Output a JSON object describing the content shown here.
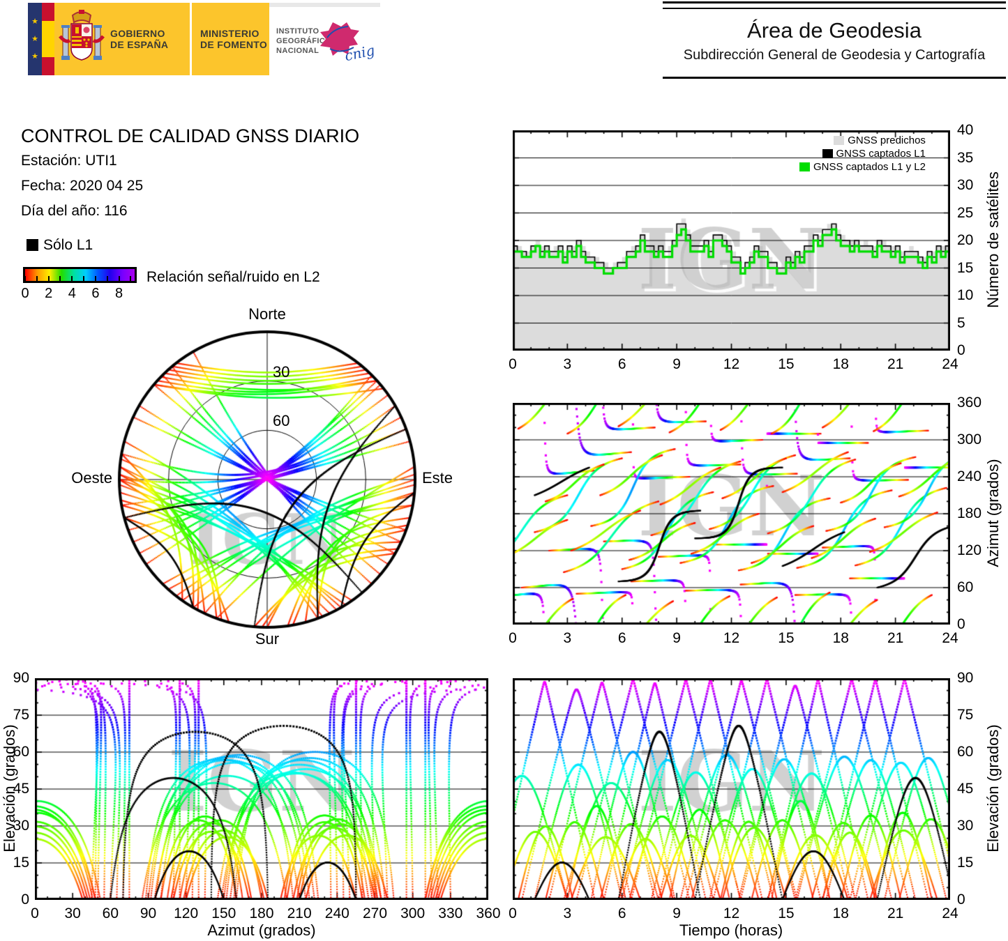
{
  "header": {
    "gobierno": {
      "line1": "GOBIERNO",
      "line2": "DE ESPAÑA"
    },
    "ministerio": {
      "line1": "MINISTERIO",
      "line2": "DE FOMENTO"
    },
    "instituto": {
      "line1": "INSTITUTO",
      "line2": "GEOGRÁFICO",
      "line3": "NACIONAL"
    },
    "cnig_label": "cnig",
    "area": {
      "title": "Área de Geodesia",
      "subtitle": "Subdirección General de Geodesia y Cartografía"
    }
  },
  "info": {
    "title": "CONTROL DE CALIDAD GNSS DIARIO",
    "station": "Estación: UTI1",
    "date": "Fecha: 2020 04 25",
    "doy": "Día del año: 116"
  },
  "legend": {
    "solo_l1": "Sólo L1",
    "colorbar_label": "Relación señal/ruido en L2",
    "colorbar_ticks": [
      0,
      2,
      4,
      6,
      8
    ],
    "colorbar_minor_ticks": [
      0,
      1,
      2,
      3,
      4,
      5,
      6,
      7,
      8,
      9
    ],
    "colorbar_range": [
      0,
      9.33
    ],
    "colorbar_stops": [
      "#ff0000",
      "#ff9900",
      "#ffee00",
      "#22dd00",
      "#00e0a0",
      "#00ccff",
      "#0055ff",
      "#2200ee",
      "#7700ff",
      "#aa00ee"
    ]
  },
  "skyplot": {
    "north": "Norte",
    "south": "Sur",
    "west": "Oeste",
    "east": "Este",
    "rings": [
      30,
      60
    ]
  },
  "charts": {
    "count": {
      "ylabel": "Número de satélites",
      "xticks": [
        0,
        3,
        6,
        9,
        12,
        15,
        18,
        21,
        24
      ],
      "yticks": [
        0,
        5,
        10,
        15,
        20,
        25,
        30,
        35,
        40
      ],
      "legend": [
        {
          "label": "GNSS predichos",
          "color": "#dcdcdc"
        },
        {
          "label": "GNSS captados L1",
          "color": "#000000"
        },
        {
          "label": "GNSS captados L1 y L2",
          "color": "#00dd00"
        }
      ]
    },
    "azimut": {
      "ylabel": "Azimut (grados)",
      "xticks": [
        0,
        3,
        6,
        9,
        12,
        15,
        18,
        21,
        24
      ],
      "yticks": [
        0,
        60,
        120,
        180,
        240,
        300,
        360
      ]
    },
    "elev_az": {
      "xlabel": "Azimut (grados)",
      "ylabel": "Elevación (grados)",
      "xticks": [
        0,
        30,
        60,
        90,
        120,
        150,
        180,
        210,
        240,
        270,
        300,
        330,
        360
      ],
      "yticks": [
        0,
        15,
        30,
        45,
        60,
        75,
        90
      ]
    },
    "elev_time": {
      "xlabel": "Tiempo (horas)",
      "ylabel": "Elevación (grados)",
      "xticks": [
        0,
        3,
        6,
        9,
        12,
        15,
        18,
        21,
        24
      ],
      "yticks": [
        0,
        15,
        30,
        45,
        60,
        75,
        90
      ]
    }
  },
  "chart_data": {
    "watermark": "IGN",
    "satellite_count": {
      "type": "line",
      "style": "steps",
      "x_start_hours": 0,
      "x_step_hours": 0.25,
      "x_range": [
        0,
        24
      ],
      "y_range": [
        0,
        40
      ],
      "grid_step": 5,
      "series": [
        {
          "name": "GNSS predichos",
          "style": "filled-steps",
          "color": "#dcdcdc",
          "values": [
            19,
            19,
            18,
            18,
            19,
            20,
            19,
            19,
            18,
            19,
            19,
            18,
            19,
            19,
            20,
            19,
            18,
            17,
            17,
            16,
            16,
            15,
            16,
            16,
            17,
            18,
            19,
            19,
            21,
            20,
            19,
            19,
            19,
            18,
            19,
            20,
            23,
            24,
            22,
            20,
            19,
            20,
            20,
            19,
            21,
            22,
            21,
            20,
            18,
            17,
            16,
            16,
            18,
            19,
            19,
            18,
            17,
            16,
            15,
            16,
            17,
            17,
            18,
            18,
            19,
            20,
            21,
            21,
            22,
            23,
            23,
            22,
            21,
            20,
            20,
            20,
            19,
            20,
            19,
            19,
            20,
            20,
            19,
            19,
            19,
            18,
            18,
            19,
            18,
            17,
            17,
            18,
            18,
            19,
            19,
            19
          ]
        },
        {
          "name": "GNSS captados L1",
          "style": "steps",
          "color": "#000000",
          "values": [
            19,
            18,
            18,
            17,
            19,
            19,
            18,
            19,
            18,
            18,
            19,
            17,
            19,
            18,
            20,
            18,
            17,
            17,
            16,
            16,
            15,
            15,
            15,
            16,
            16,
            18,
            18,
            19,
            21,
            19,
            19,
            18,
            19,
            18,
            18,
            20,
            23,
            23,
            21,
            19,
            19,
            19,
            20,
            18,
            21,
            21,
            20,
            19,
            17,
            17,
            15,
            16,
            17,
            19,
            18,
            18,
            16,
            16,
            15,
            15,
            17,
            16,
            18,
            17,
            19,
            19,
            21,
            20,
            22,
            22,
            23,
            21,
            20,
            20,
            19,
            20,
            19,
            19,
            19,
            18,
            20,
            19,
            19,
            18,
            19,
            17,
            18,
            18,
            18,
            17,
            16,
            18,
            17,
            19,
            18,
            19
          ]
        },
        {
          "name": "GNSS captados L1 y L2",
          "style": "steps",
          "color": "#00dd00",
          "values": [
            18,
            18,
            17,
            17,
            18,
            19,
            17,
            18,
            17,
            17,
            18,
            16,
            18,
            17,
            19,
            17,
            16,
            16,
            15,
            15,
            14,
            14,
            15,
            15,
            15,
            17,
            17,
            18,
            20,
            18,
            18,
            17,
            18,
            17,
            17,
            19,
            21,
            22,
            20,
            18,
            18,
            18,
            19,
            17,
            20,
            20,
            19,
            18,
            16,
            16,
            14,
            15,
            16,
            18,
            17,
            17,
            15,
            15,
            14,
            14,
            16,
            15,
            17,
            16,
            18,
            18,
            20,
            19,
            21,
            21,
            22,
            20,
            19,
            19,
            18,
            19,
            18,
            18,
            18,
            17,
            19,
            18,
            18,
            17,
            18,
            16,
            17,
            17,
            17,
            16,
            15,
            17,
            16,
            18,
            17,
            18
          ]
        }
      ]
    },
    "satellite_tracks": {
      "type": "scatter",
      "note": "Satellite passes shown as dotted tracks in skyplot, azimuth-vs-time, elevation-vs-azimuth and elevation-vs-time panels; approximated here by pass parameters [rise_hour, duration_h, rise_azimuth_deg, set_azimuth_deg, bulge_toward_zenith_0to1, l1_only_flag].",
      "color_by": "L2 signal/noise (correlates with elevation): red=low, yellow/green=mid, cyan/blue=high, magenta=highest; black = L1 only",
      "time_range_hours": [
        0,
        24
      ],
      "azimuth_range_deg": [
        0,
        360
      ],
      "elevation_range_deg": [
        0,
        90
      ],
      "passes": [
        [
          -1.0,
          5.5,
          45,
          250,
          0.92,
          0
        ],
        [
          0.5,
          6.0,
          60,
          280,
          0.85,
          0
        ],
        [
          2.0,
          5.8,
          120,
          320,
          0.88,
          0
        ],
        [
          3.5,
          6.2,
          50,
          240,
          0.95,
          0
        ],
        [
          5.0,
          5.6,
          135,
          330,
          0.82,
          0
        ],
        [
          6.5,
          6.0,
          70,
          260,
          0.9,
          0
        ],
        [
          8.0,
          5.7,
          110,
          300,
          0.93,
          0
        ],
        [
          9.5,
          6.1,
          55,
          245,
          0.86,
          0
        ],
        [
          11.0,
          5.9,
          130,
          310,
          0.96,
          0
        ],
        [
          12.5,
          6.0,
          65,
          270,
          0.84,
          0
        ],
        [
          14.0,
          5.5,
          115,
          295,
          0.91,
          0
        ],
        [
          15.5,
          6.2,
          48,
          235,
          0.88,
          0
        ],
        [
          17.0,
          5.8,
          125,
          315,
          0.94,
          0
        ],
        [
          18.5,
          6.0,
          75,
          255,
          0.83,
          0
        ],
        [
          -2.0,
          5.0,
          95,
          210,
          0.18,
          0
        ],
        [
          1.2,
          4.8,
          150,
          270,
          0.22,
          0
        ],
        [
          2.8,
          5.2,
          85,
          200,
          0.12,
          0
        ],
        [
          4.3,
          4.6,
          160,
          285,
          0.28,
          0
        ],
        [
          6.0,
          5.0,
          90,
          215,
          0.2,
          0
        ],
        [
          7.6,
          4.9,
          145,
          265,
          0.15,
          0
        ],
        [
          9.2,
          5.1,
          100,
          225,
          0.25,
          0
        ],
        [
          10.8,
          4.7,
          155,
          275,
          0.18,
          0
        ],
        [
          12.4,
          5.0,
          88,
          205,
          0.3,
          0
        ],
        [
          14.0,
          4.8,
          148,
          268,
          0.14,
          0
        ],
        [
          15.6,
          5.2,
          92,
          218,
          0.22,
          0
        ],
        [
          17.2,
          4.9,
          152,
          272,
          0.26,
          0
        ],
        [
          18.8,
          5.0,
          96,
          222,
          0.16,
          0
        ],
        [
          20.4,
          4.8,
          158,
          278,
          0.28,
          0
        ],
        [
          -0.5,
          3.5,
          110,
          170,
          0.2,
          0
        ],
        [
          1.8,
          3.2,
          200,
          260,
          0.25,
          0
        ],
        [
          3.2,
          3.8,
          120,
          185,
          0.15,
          0
        ],
        [
          4.8,
          3.4,
          210,
          275,
          0.22,
          0
        ],
        [
          6.4,
          3.6,
          105,
          165,
          0.28,
          0
        ],
        [
          8.1,
          3.3,
          195,
          255,
          0.18,
          0
        ],
        [
          9.8,
          3.7,
          115,
          180,
          0.24,
          0
        ],
        [
          11.5,
          3.5,
          205,
          270,
          0.2,
          0
        ],
        [
          13.1,
          3.4,
          100,
          160,
          0.26,
          0
        ],
        [
          14.8,
          3.6,
          215,
          280,
          0.16,
          0
        ],
        [
          16.4,
          3.5,
          108,
          172,
          0.23,
          0
        ],
        [
          18.0,
          3.3,
          198,
          262,
          0.27,
          0
        ],
        [
          19.6,
          3.7,
          118,
          182,
          0.19,
          0
        ],
        [
          21.2,
          3.5,
          208,
          272,
          0.25,
          0
        ],
        [
          0.3,
          3.0,
          318,
          42,
          0.1,
          0
        ],
        [
          3.0,
          3.2,
          310,
          48,
          0.12,
          0
        ],
        [
          5.8,
          3.0,
          322,
          38,
          0.08,
          0
        ],
        [
          8.6,
          3.3,
          312,
          46,
          0.13,
          0
        ],
        [
          11.4,
          3.1,
          316,
          44,
          0.1,
          0
        ],
        [
          14.2,
          3.2,
          310,
          52,
          0.12,
          0
        ],
        [
          17.0,
          3.0,
          320,
          40,
          0.09,
          0
        ],
        [
          19.8,
          3.2,
          314,
          48,
          0.11,
          0
        ],
        [
          5.8,
          4.5,
          70,
          185,
          0.55,
          1
        ],
        [
          10.0,
          4.8,
          140,
          255,
          0.6,
          1
        ],
        [
          14.8,
          3.4,
          95,
          150,
          0.12,
          1
        ],
        [
          1.2,
          3.0,
          210,
          255,
          0.1,
          1
        ],
        [
          20.0,
          4.2,
          60,
          160,
          0.3,
          1
        ]
      ]
    }
  }
}
